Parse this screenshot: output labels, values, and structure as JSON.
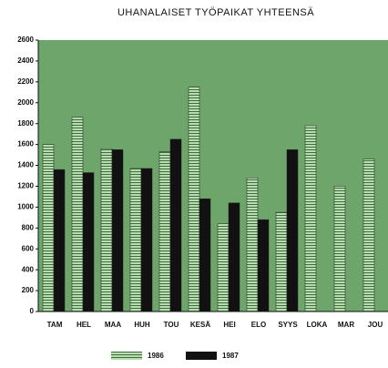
{
  "chart_data": {
    "type": "bar",
    "title": "UHANALAISET TYÖPAIKAT YHTEENSÄ",
    "categories": [
      "TAM",
      "HEL",
      "MAA",
      "HUH",
      "TOU",
      "KESÄ",
      "HEI",
      "ELO",
      "SYYS",
      "LOKA",
      "MAR",
      "JOU"
    ],
    "series": [
      {
        "name": "1986",
        "color": "#b9dcb3",
        "values": [
          1600,
          1860,
          1560,
          1370,
          1530,
          2150,
          840,
          1280,
          950,
          1780,
          1200,
          1460
        ]
      },
      {
        "name": "1987",
        "color": "#111111",
        "values": [
          1360,
          1330,
          1550,
          1370,
          1650,
          1080,
          1040,
          880,
          1550,
          null,
          null,
          null
        ]
      }
    ],
    "ylim": [
      0,
      2600
    ],
    "yticks": [
      0,
      200,
      400,
      600,
      800,
      1000,
      1200,
      1400,
      1600,
      1800,
      2000,
      2200,
      2400,
      2600
    ],
    "background": "#6ea56a"
  }
}
